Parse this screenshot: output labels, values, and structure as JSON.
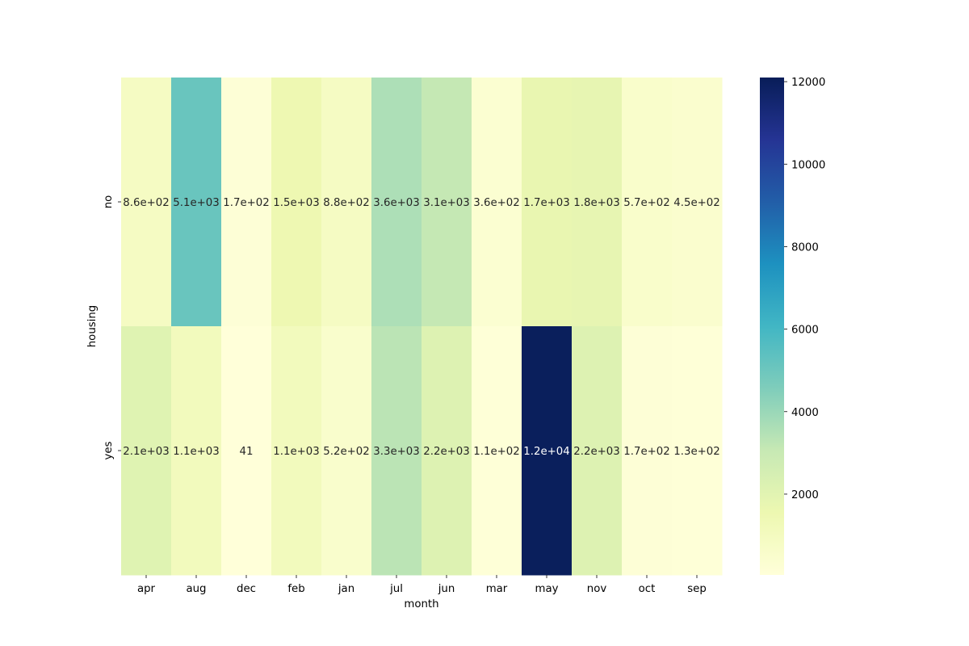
{
  "chart_data": {
    "type": "heatmap",
    "xlabel": "month",
    "ylabel": "housing",
    "x_categories": [
      "apr",
      "aug",
      "dec",
      "feb",
      "jan",
      "jul",
      "jun",
      "mar",
      "may",
      "nov",
      "oct",
      "sep"
    ],
    "y_categories": [
      "no",
      "yes"
    ],
    "values": [
      [
        860,
        5100,
        170,
        1500,
        880,
        3600,
        3100,
        360,
        1700,
        1800,
        570,
        450
      ],
      [
        2100,
        1100,
        41,
        1100,
        520,
        3300,
        2200,
        110,
        12000,
        2200,
        170,
        130
      ]
    ],
    "annotations": [
      [
        "8.6e+02",
        "5.1e+03",
        "1.7e+02",
        "1.5e+03",
        "8.8e+02",
        "3.6e+03",
        "3.1e+03",
        "3.6e+02",
        "1.7e+03",
        "1.8e+03",
        "5.7e+02",
        "4.5e+02"
      ],
      [
        "2.1e+03",
        "1.1e+03",
        "41",
        "1.1e+03",
        "5.2e+02",
        "3.3e+03",
        "2.2e+03",
        "1.1e+02",
        "1.2e+04",
        "2.2e+03",
        "1.7e+02",
        "1.3e+02"
      ]
    ],
    "colormap": "YlGnBu",
    "colorbar": {
      "vmin": 41,
      "vmax": 12100,
      "ticks": [
        2000,
        4000,
        6000,
        8000,
        10000,
        12000
      ],
      "tick_labels": [
        "2000",
        "4000",
        "6000",
        "8000",
        "10000",
        "12000"
      ]
    },
    "grid": false
  }
}
